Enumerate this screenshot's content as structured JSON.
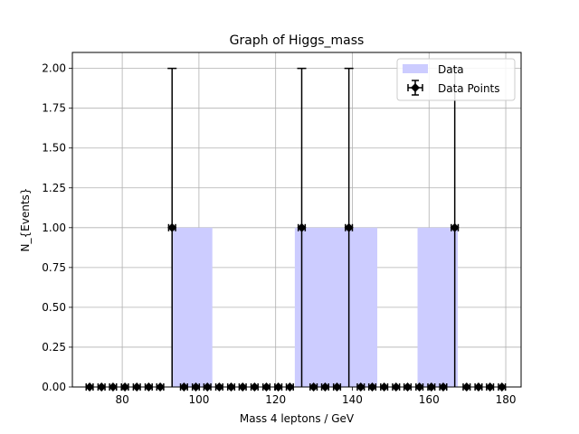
{
  "chart_data": {
    "type": "bar",
    "title": "Graph of Higgs_mass",
    "xlabel": "Mass 4 leptons / GeV",
    "ylabel": "N_{Events}",
    "xlim": [
      67,
      184
    ],
    "ylim": [
      0,
      2.1
    ],
    "xticks": [
      80,
      100,
      120,
      140,
      160,
      180
    ],
    "yticks": [
      0.0,
      0.25,
      0.5,
      0.75,
      1.0,
      1.25,
      1.5,
      1.75,
      2.0
    ],
    "ytick_labels": [
      "0.00",
      "0.25",
      "0.50",
      "0.75",
      "1.00",
      "1.25",
      "1.50",
      "1.75",
      "2.00"
    ],
    "grid": true,
    "legend_position": "top-right",
    "series": [
      {
        "name": "Data",
        "style": "histogram",
        "color": "#ccccff",
        "bins": [
          {
            "x0": 92.8,
            "x1": 103.5,
            "value": 1
          },
          {
            "x0": 125.0,
            "x1": 146.5,
            "value": 1
          },
          {
            "x0": 157.0,
            "x1": 167.5,
            "value": 1
          }
        ]
      },
      {
        "name": "Data Points",
        "style": "errorbar",
        "color": "#000000",
        "x": [
          71.5,
          74.6,
          77.6,
          80.7,
          83.8,
          86.9,
          89.9,
          93.0,
          96.1,
          99.2,
          102.2,
          105.3,
          108.4,
          111.4,
          114.5,
          117.6,
          120.7,
          123.7,
          126.8,
          129.9,
          132.9,
          136.0,
          139.1,
          142.2,
          145.2,
          148.3,
          151.4,
          154.4,
          157.5,
          160.6,
          163.7,
          166.7,
          169.8,
          172.9,
          175.9,
          179.0
        ],
        "y": [
          0,
          0,
          0,
          0,
          0,
          0,
          0,
          1,
          0,
          0,
          0,
          0,
          0,
          0,
          0,
          0,
          0,
          0,
          1,
          0,
          0,
          0,
          1,
          0,
          0,
          0,
          0,
          0,
          0,
          0,
          0,
          1,
          0,
          0,
          0,
          0
        ],
        "yerr": [
          0,
          0,
          0,
          0,
          0,
          0,
          0,
          1,
          0,
          0,
          0,
          0,
          0,
          0,
          0,
          0,
          0,
          0,
          1,
          0,
          0,
          0,
          1,
          0,
          0,
          0,
          0,
          0,
          0,
          0,
          0,
          1,
          0,
          0,
          0,
          0
        ],
        "xerr": 0.9
      }
    ]
  }
}
